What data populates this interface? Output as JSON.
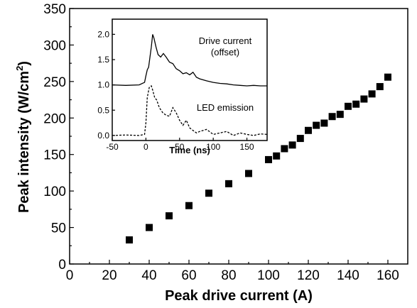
{
  "chart_data": [
    {
      "type": "scatter",
      "xlabel": "Peak drive current (A)",
      "ylabel_main": "Peak intensity (W/cm",
      "ylabel_sup": "2",
      "ylabel_end": ")",
      "xlim": [
        0,
        170
      ],
      "ylim": [
        0,
        350
      ],
      "xticks": [
        0,
        20,
        40,
        60,
        80,
        100,
        120,
        140,
        160
      ],
      "yticks": [
        0,
        50,
        100,
        150,
        200,
        250,
        300,
        350
      ],
      "marker": "square",
      "color": "#000000",
      "series": [
        {
          "x": [
            30,
            40,
            50,
            60,
            70,
            80,
            90,
            100,
            104,
            108,
            112,
            116,
            120,
            124,
            128,
            132,
            136,
            140,
            144,
            148,
            152,
            156,
            160
          ],
          "y": [
            33,
            50,
            66,
            80,
            97,
            110,
            124,
            143,
            148,
            158,
            163,
            172,
            183,
            190,
            193,
            202,
            205,
            216,
            219,
            226,
            233,
            243,
            256
          ]
        }
      ]
    },
    {
      "type": "line",
      "xlabel": "Time  (ns)",
      "ylabel": "",
      "xlim": [
        -50,
        180
      ],
      "ylim": [
        -0.1,
        2.3
      ],
      "xticks": [
        -50,
        0,
        50,
        100,
        150
      ],
      "yticks": [
        0.0,
        0.5,
        1.0,
        1.5,
        2.0
      ],
      "ytick_labels": [
        "0.0",
        "0.5",
        "1.0",
        "1.5",
        "2.0"
      ],
      "series": [
        {
          "name": "Drive current (offset)",
          "annotation_line1": "Drive current",
          "annotation_line2": "(offset)",
          "style": "solid",
          "x": [
            -50,
            -30,
            -10,
            -2,
            0,
            2,
            4,
            6,
            8,
            10,
            12,
            15,
            18,
            22,
            26,
            30,
            35,
            40,
            45,
            50,
            55,
            60,
            65,
            70,
            75,
            80,
            90,
            100,
            110,
            120,
            130,
            140,
            150,
            160,
            170,
            180
          ],
          "y": [
            1.0,
            0.99,
            1.0,
            1.05,
            1.18,
            1.3,
            1.35,
            1.55,
            1.75,
            2.0,
            1.92,
            1.75,
            1.6,
            1.55,
            1.62,
            1.55,
            1.45,
            1.42,
            1.32,
            1.28,
            1.22,
            1.24,
            1.2,
            1.25,
            1.15,
            1.12,
            1.08,
            1.05,
            1.03,
            1.02,
            1.0,
            0.99,
            0.98,
            0.99,
            0.98,
            0.98
          ]
        },
        {
          "name": "LED emission",
          "annotation_line1": "LED emission",
          "style": "dashed",
          "x": [
            -50,
            -30,
            -10,
            -2,
            0,
            2,
            5,
            8,
            10,
            13,
            16,
            20,
            25,
            30,
            35,
            40,
            45,
            50,
            55,
            60,
            65,
            70,
            75,
            80,
            90,
            100,
            110,
            120,
            130,
            140,
            150,
            160,
            170,
            180
          ],
          "y": [
            0.0,
            0.01,
            0.0,
            0.02,
            0.25,
            0.75,
            0.95,
            0.98,
            0.9,
            0.75,
            0.7,
            0.55,
            0.45,
            0.4,
            0.38,
            0.55,
            0.45,
            0.3,
            0.2,
            0.3,
            0.15,
            0.1,
            0.05,
            0.08,
            0.12,
            0.02,
            0.05,
            0.08,
            0.0,
            0.05,
            0.02,
            0.0,
            0.03,
            0.02
          ]
        }
      ]
    }
  ]
}
